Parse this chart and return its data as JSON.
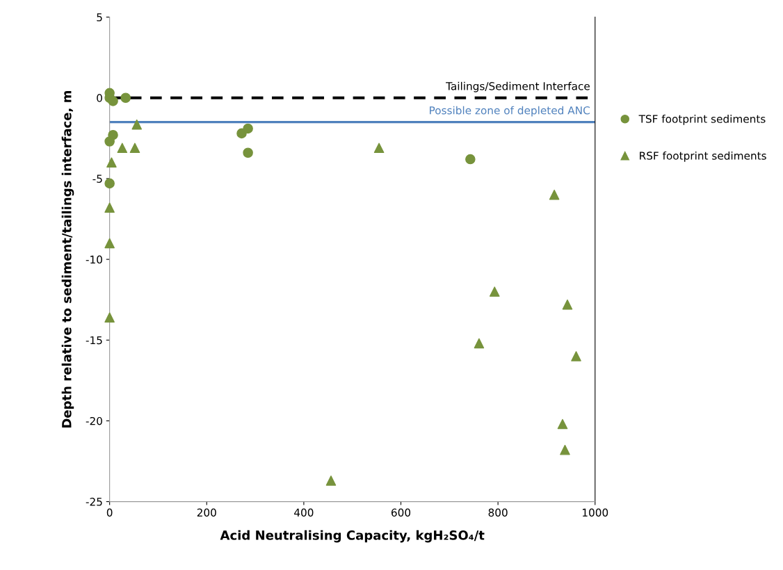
{
  "chart_data": {
    "type": "scatter",
    "xlabel": "Acid Neutralising Capacity, kgH₂SO₄/t",
    "ylabel": "Depth relative to sediment/tailings interface, m",
    "xlim": [
      0,
      1000
    ],
    "xticks": [
      0,
      200,
      400,
      600,
      800,
      1000
    ],
    "ylim": [
      -25,
      5
    ],
    "yticks": [
      -25,
      -20,
      -15,
      -10,
      -5,
      0,
      5
    ],
    "grid": false,
    "legend": "right",
    "series": [
      {
        "name": "TSF footprint sediments",
        "color": "#77933c",
        "marker": "circle",
        "x": [
          0,
          0,
          7,
          33,
          7,
          0,
          0,
          272,
          285,
          285,
          743
        ],
        "values": [
          0.3,
          0,
          -0.2,
          0,
          -2.3,
          -2.7,
          -5.3,
          -2.2,
          -1.9,
          -3.4,
          -3.8
        ]
      },
      {
        "name": "RSF footprint sediments",
        "color": "#77933c",
        "marker": "triangle",
        "x": [
          56,
          26,
          52,
          4,
          0,
          0,
          0,
          555,
          916,
          793,
          943,
          761,
          961,
          933,
          938,
          456
        ],
        "values": [
          -1.65,
          -3.1,
          -3.1,
          -4.0,
          -6.8,
          -9.0,
          -13.6,
          -3.1,
          -6.0,
          -12.0,
          -12.8,
          -15.2,
          -16.0,
          -20.2,
          -21.8,
          -23.7
        ]
      }
    ],
    "ref_lines": [
      {
        "axis": "y",
        "value": 0,
        "label": "Tailings/Sediment Interface",
        "color": "#000000",
        "line_style": "dashed"
      },
      {
        "axis": "y",
        "value": -1.5,
        "label": "Possible zone of depleted ANC",
        "color": "#4f81bd",
        "line_style": "solid"
      }
    ]
  }
}
